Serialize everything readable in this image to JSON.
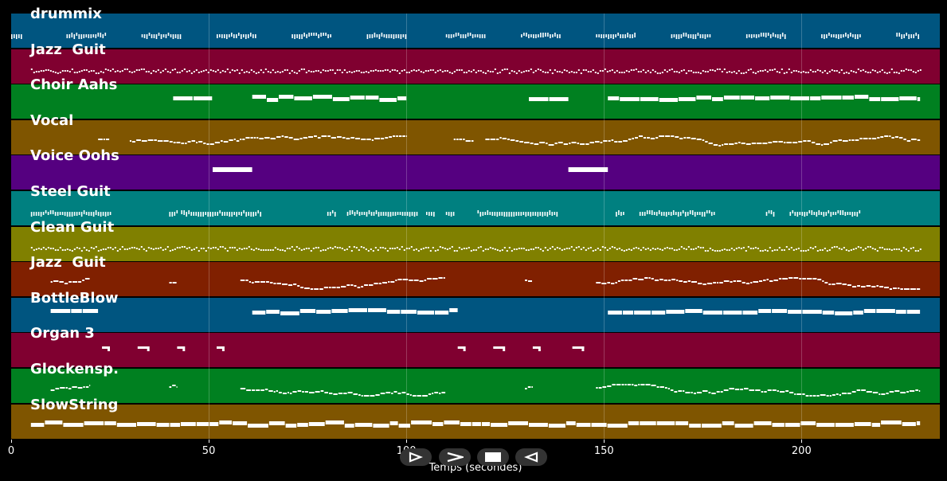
{
  "tracks": [
    {
      "name": "drummix",
      "color": "#005580",
      "style": "drum"
    },
    {
      "name": "Jazz  Guit",
      "color": "#800030",
      "style": "dense"
    },
    {
      "name": "Choir Aahs",
      "color": "#008020",
      "style": "long"
    },
    {
      "name": "Vocal",
      "color": "#7f5500",
      "style": "melody"
    },
    {
      "name": "Voice Oohs",
      "color": "#550080",
      "style": "sparse"
    },
    {
      "name": "Steel Guit",
      "color": "#008080",
      "style": "drum2"
    },
    {
      "name": "Clean Guit",
      "color": "#808000",
      "style": "dense"
    },
    {
      "name": "Jazz  Guit",
      "color": "#802000",
      "style": "melody2"
    },
    {
      "name": "BottleBlow",
      "color": "#005580",
      "style": "long2"
    },
    {
      "name": "Organ 3",
      "color": "#800030",
      "style": "dots"
    },
    {
      "name": "Glockensp.",
      "color": "#008020",
      "style": "melody2"
    },
    {
      "name": "SlowString",
      "color": "#7f5500",
      "style": "continuous"
    }
  ],
  "axis": {
    "label": "Temps (secondes)",
    "min": 0,
    "max": 235,
    "ticks": [
      0,
      50,
      100,
      150,
      200
    ]
  },
  "controls": [
    {
      "name": "play-button",
      "icon": "play-outline-icon"
    },
    {
      "name": "forward-button",
      "icon": "chevron-right-icon"
    },
    {
      "name": "stop-button",
      "icon": "stop-icon"
    },
    {
      "name": "rewind-button",
      "icon": "rewind-outline-icon"
    }
  ]
}
